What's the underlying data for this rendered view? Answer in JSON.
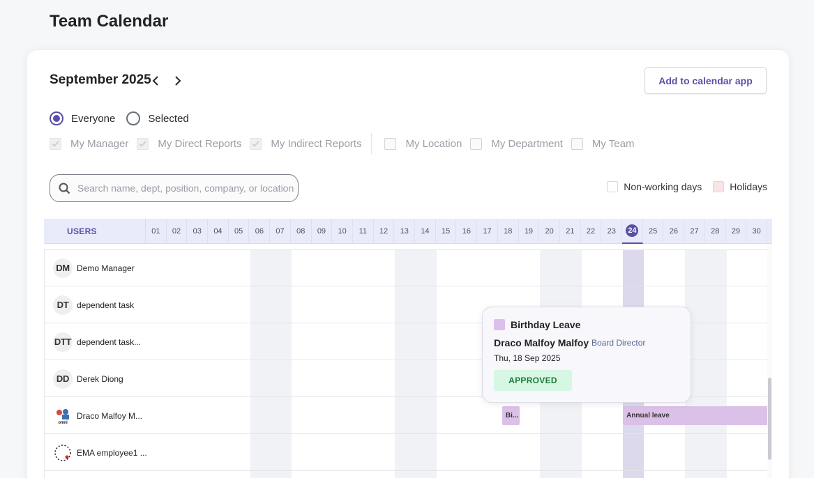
{
  "page": {
    "title": "Team Calendar"
  },
  "calendar": {
    "month_label": "September 2025",
    "add_button": "Add to calendar app",
    "scope_options": [
      {
        "label": "Everyone",
        "selected": true
      },
      {
        "label": "Selected",
        "selected": false
      }
    ],
    "filters": [
      {
        "label": "My Manager",
        "checked": true
      },
      {
        "label": "My Direct Reports",
        "checked": true
      },
      {
        "label": "My Indirect Reports",
        "checked": true
      },
      {
        "label": "My Location",
        "checked": false
      },
      {
        "label": "My Department",
        "checked": false
      },
      {
        "label": "My Team",
        "checked": false
      }
    ],
    "search_placeholder": "Search name, dept, position, company, or location",
    "legend": {
      "non_working": "Non-working days",
      "holidays": "Holidays"
    },
    "users_header": "USERS",
    "days": [
      "01",
      "02",
      "03",
      "04",
      "05",
      "06",
      "07",
      "08",
      "09",
      "10",
      "11",
      "12",
      "13",
      "14",
      "15",
      "16",
      "17",
      "18",
      "19",
      "20",
      "21",
      "22",
      "23",
      "24",
      "25",
      "26",
      "27",
      "28",
      "29",
      "30"
    ],
    "today": "24",
    "weekend_days": [
      "06",
      "07",
      "13",
      "14",
      "20",
      "21",
      "27",
      "28"
    ],
    "users": [
      {
        "initials": "DM",
        "name": "Demo Manager"
      },
      {
        "initials": "DT",
        "name": "dependent task"
      },
      {
        "initials": "DTT",
        "name": "dependent task..."
      },
      {
        "initials": "DD",
        "name": "Derek Diong"
      },
      {
        "initials": "",
        "avatar_icon": "person-photo-icon",
        "name": "Draco Malfoy M..."
      },
      {
        "initials": "",
        "avatar_icon": "dots-ring-icon",
        "name": "EMA employee1 ..."
      }
    ],
    "leaves": [
      {
        "user_index": 4,
        "start_day": "18",
        "end_day": "18",
        "label": "Bi...",
        "color": "#dbc1e8"
      },
      {
        "user_index": 4,
        "start_day": "24",
        "end_day": "30",
        "label": "Annual leave",
        "color": "#dbc1e8"
      }
    ]
  },
  "tooltip": {
    "leave_type": "Birthday Leave",
    "employee": "Draco Malfoy Malfoy",
    "position": "Board Director",
    "date": "Thu, 18 Sep 2025",
    "status": "APPROVED"
  },
  "colors": {
    "accent": "#5a4fa8",
    "leave": "#dbc1e8",
    "holiday": "#fbe4e6",
    "approved_bg": "#d6f7e3",
    "approved_text": "#1d7a3b"
  }
}
